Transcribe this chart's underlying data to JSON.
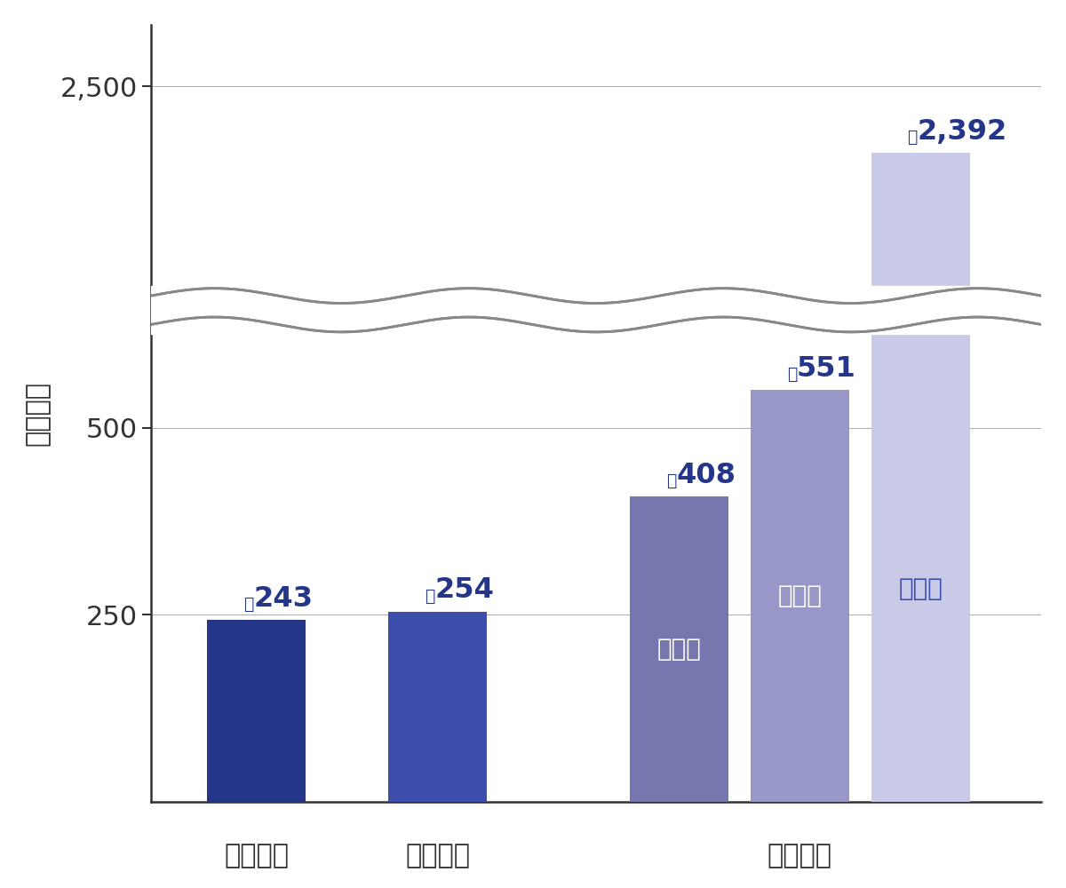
{
  "categories": [
    "国立大学",
    "公立大学",
    "文化系",
    "理科系",
    "医歯系"
  ],
  "values": [
    243,
    254,
    408,
    551,
    2392
  ],
  "value_labels": [
    "243",
    "254",
    "408",
    "551",
    "2,392"
  ],
  "bar_labels": [
    "",
    "",
    "文化系",
    "理科系",
    "医歯系"
  ],
  "bar_colors": [
    "#253688",
    "#3d4faa",
    "#7777b0",
    "#9898c8",
    "#c8cae8"
  ],
  "bar_label_colors": [
    "",
    "",
    "#ffffff",
    "#ffffff",
    "#3a4aaa"
  ],
  "x_group_labels": [
    "国立大学",
    "公立大学",
    "私立大学"
  ],
  "ylabel": "（万円）",
  "ytick_reals": [
    250,
    500,
    2500
  ],
  "ytick_labels": [
    "250",
    "500",
    "2,500"
  ],
  "axis_color": "#333333",
  "label_color_dark": "#253688",
  "wave_color": "#888888",
  "value_fontsize": 22,
  "bar_label_fontsize": 20,
  "axis_label_fontsize": 22,
  "tick_fontsize": 22,
  "group_label_fontsize": 22
}
